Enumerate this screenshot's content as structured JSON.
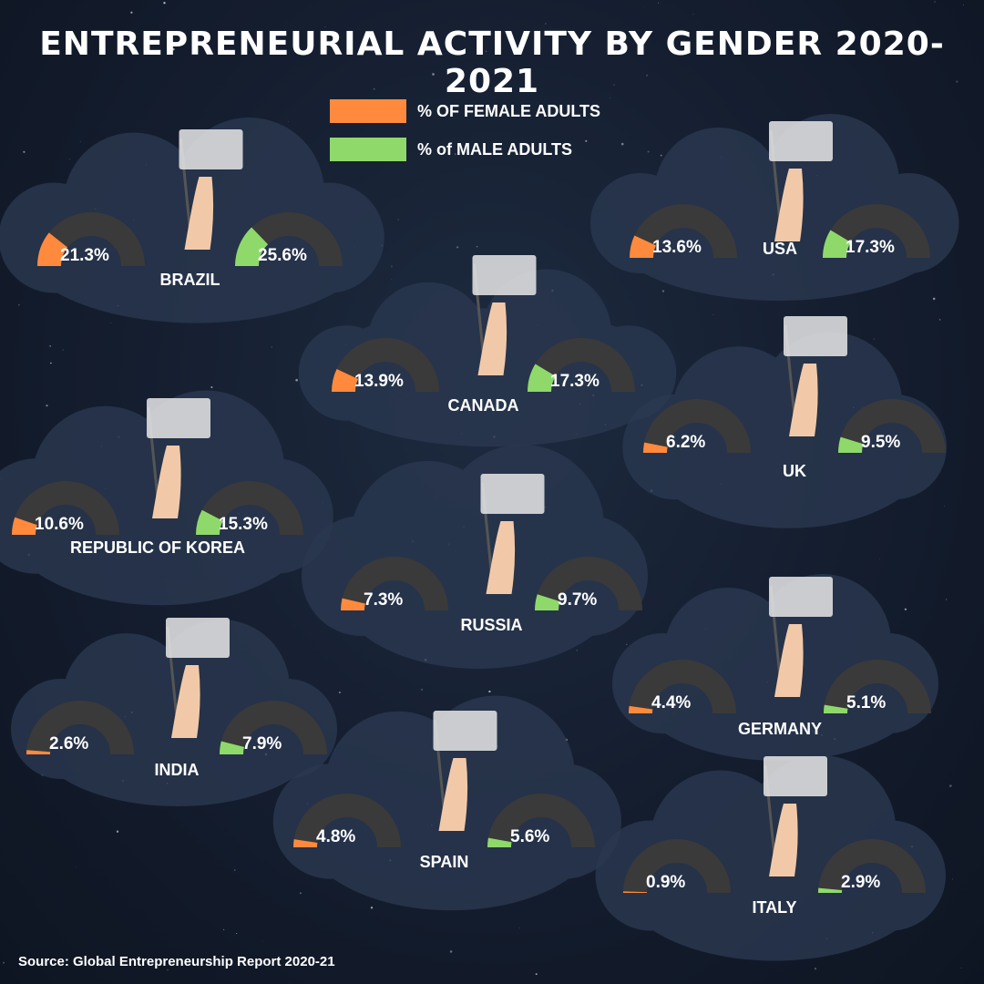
{
  "title": "ENTREPRENEURIAL ACTIVITY BY GENDER 2020-2021",
  "legend": {
    "female_label": "% OF FEMALE ADULTS",
    "male_label": "% of MALE ADULTS",
    "female_color": "#ff8a3d",
    "male_color": "#8fd96b"
  },
  "source": "Source: Global Entrepreneurship Report 2020-21",
  "colors": {
    "track": "#3a3a3a",
    "cloud": "#2a3850"
  },
  "chart_data": {
    "type": "gauge",
    "gauge_max": 100,
    "categories": [
      "BRAZIL",
      "USA",
      "CANADA",
      "UK",
      "REPUBLIC OF KOREA",
      "RUSSIA",
      "GERMANY",
      "INDIA",
      "SPAIN",
      "ITALY"
    ],
    "series": [
      {
        "name": "% OF FEMALE ADULTS",
        "values": [
          21.3,
          13.6,
          13.9,
          6.2,
          10.6,
          7.3,
          4.4,
          2.6,
          4.8,
          0.9
        ]
      },
      {
        "name": "% of MALE ADULTS",
        "values": [
          25.6,
          17.3,
          17.3,
          9.5,
          15.3,
          9.7,
          5.1,
          7.9,
          5.6,
          2.9
        ]
      }
    ],
    "labels_female": [
      "21.3%",
      "13.6%",
      "13.9%",
      "6.2%",
      "10.6%",
      "7.3%",
      "4.4%",
      "2.6%",
      "4.8%",
      "0.9%"
    ],
    "labels_male": [
      "25.6%",
      "17.3%",
      "17.3%",
      "9.5%",
      "15.3%",
      "9.7%",
      "5.1%",
      "7.9%",
      "5.6%",
      "2.9%"
    ]
  }
}
